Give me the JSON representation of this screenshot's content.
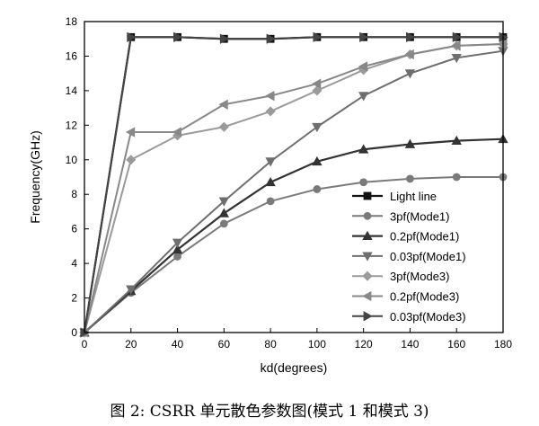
{
  "caption": "图 2: CSRR 单元散色参数图(模式 1 和模式 3)",
  "chart_data": {
    "type": "line",
    "xlabel": "kd(degrees)",
    "ylabel": "Frequency(GHz)",
    "xlim": [
      0,
      180
    ],
    "ylim": [
      0,
      18
    ],
    "xticks": [
      0,
      20,
      40,
      60,
      80,
      100,
      120,
      140,
      160,
      180
    ],
    "yticks": [
      0,
      2,
      4,
      6,
      8,
      10,
      12,
      14,
      16,
      18
    ],
    "grid": false,
    "legend_position": "bottom-right",
    "series": [
      {
        "name": "Light line",
        "marker": "square",
        "color": "#111111",
        "width": 2.2,
        "x": [
          0,
          20,
          40,
          60,
          80,
          100,
          120,
          140,
          160,
          180
        ],
        "y": [
          0,
          17.1,
          17.1,
          17.0,
          17.0,
          17.1,
          17.1,
          17.1,
          17.1,
          17.1
        ]
      },
      {
        "name": "3pf(Mode1)",
        "marker": "circle",
        "color": "#7a7a7a",
        "width": 2,
        "x": [
          0,
          20,
          40,
          60,
          80,
          100,
          120,
          140,
          160,
          180
        ],
        "y": [
          0,
          2.3,
          4.4,
          6.3,
          7.6,
          8.3,
          8.7,
          8.9,
          9.0,
          9.0
        ]
      },
      {
        "name": "0.2pf(Mode1)",
        "marker": "triangle-up",
        "color": "#333333",
        "width": 2.2,
        "x": [
          0,
          20,
          40,
          60,
          80,
          100,
          120,
          140,
          160,
          180
        ],
        "y": [
          0,
          2.4,
          4.8,
          6.9,
          8.7,
          9.9,
          10.6,
          10.9,
          11.1,
          11.2
        ]
      },
      {
        "name": "0.03pf(Mode1)",
        "marker": "triangle-down",
        "color": "#6e6e6e",
        "width": 2,
        "x": [
          0,
          20,
          40,
          60,
          80,
          100,
          120,
          140,
          160,
          180
        ],
        "y": [
          0,
          2.5,
          5.2,
          7.6,
          9.9,
          11.9,
          13.7,
          15.0,
          15.9,
          16.3
        ]
      },
      {
        "name": "3pf(Mode3)",
        "marker": "diamond",
        "color": "#9a9a9a",
        "width": 2,
        "x": [
          0,
          20,
          40,
          60,
          80,
          100,
          120,
          140,
          160,
          180
        ],
        "y": [
          0,
          10.0,
          11.4,
          11.9,
          12.8,
          14.0,
          15.2,
          16.1,
          16.6,
          16.7
        ]
      },
      {
        "name": "0.2pf(Mode3)",
        "marker": "triangle-left",
        "color": "#888888",
        "width": 2,
        "x": [
          0,
          20,
          40,
          60,
          80,
          100,
          120,
          140,
          160,
          180
        ],
        "y": [
          0,
          11.6,
          11.6,
          13.2,
          13.7,
          14.4,
          15.4,
          16.1,
          16.6,
          16.7
        ]
      },
      {
        "name": "0.03pf(Mode3)",
        "marker": "triangle-right",
        "color": "#444444",
        "width": 2,
        "x": [
          0,
          20,
          40,
          60,
          80,
          100,
          120,
          140,
          160,
          180
        ],
        "y": [
          0,
          17.1,
          17.1,
          17.0,
          17.0,
          17.1,
          17.1,
          17.1,
          17.1,
          17.1
        ]
      }
    ]
  }
}
